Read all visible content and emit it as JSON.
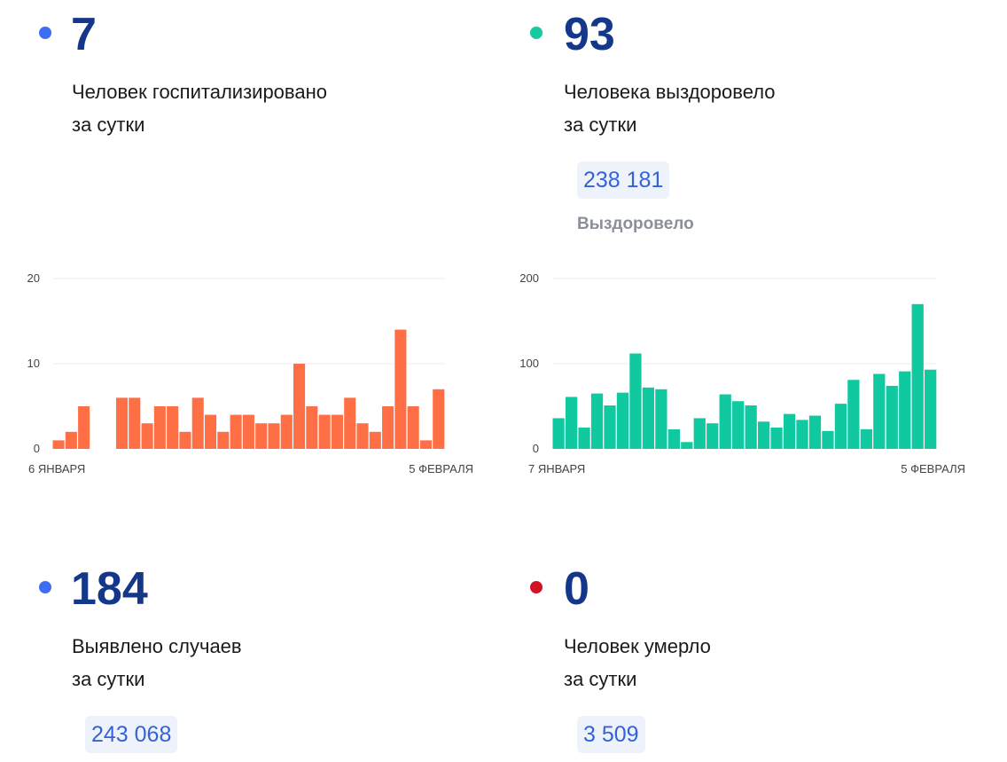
{
  "colors": {
    "blue_dot": "#3d6df2",
    "green_dot": "#18c9a0",
    "red_dot": "#d21225",
    "hospitalized_bar": "#ff6f45",
    "recovered_bar": "#10c9a0",
    "number": "#14378a",
    "total_text": "#3463d9"
  },
  "hospitalized": {
    "value": "7",
    "line1": "Человек госпитализировано",
    "line2": "за сутки"
  },
  "recovered": {
    "value": "93",
    "line1": "Человека выздоровело",
    "line2": "за сутки",
    "total": "238 181",
    "total_label": "Выздоровело"
  },
  "cases": {
    "value": "184",
    "line1": "Выявлено случаев",
    "line2": "за сутки",
    "total": "243 068"
  },
  "deaths": {
    "value": "0",
    "line1": "Человек умерло",
    "line2": "за сутки",
    "total": "3 509"
  },
  "chart_data": [
    {
      "type": "bar",
      "x_start_label": "6 ЯНВАРЯ",
      "x_end_label": "5 ФЕВРАЛЯ",
      "ylim": [
        0,
        20
      ],
      "yticks": [
        0,
        10,
        20
      ],
      "grid": true,
      "values": [
        1,
        2,
        5,
        0,
        0,
        6,
        6,
        3,
        5,
        5,
        2,
        6,
        4,
        2,
        4,
        4,
        3,
        3,
        4,
        10,
        5,
        4,
        4,
        6,
        3,
        2,
        5,
        14,
        5,
        1,
        7
      ]
    },
    {
      "type": "bar",
      "x_start_label": "7 ЯНВАРЯ",
      "x_end_label": "5 ФЕВРАЛЯ",
      "ylim": [
        0,
        200
      ],
      "yticks": [
        0,
        100,
        200
      ],
      "grid": true,
      "values": [
        36,
        61,
        25,
        65,
        51,
        66,
        112,
        72,
        70,
        23,
        8,
        36,
        30,
        64,
        56,
        51,
        32,
        25,
        41,
        34,
        39,
        21,
        53,
        81,
        23,
        88,
        74,
        91,
        170,
        93
      ]
    }
  ]
}
